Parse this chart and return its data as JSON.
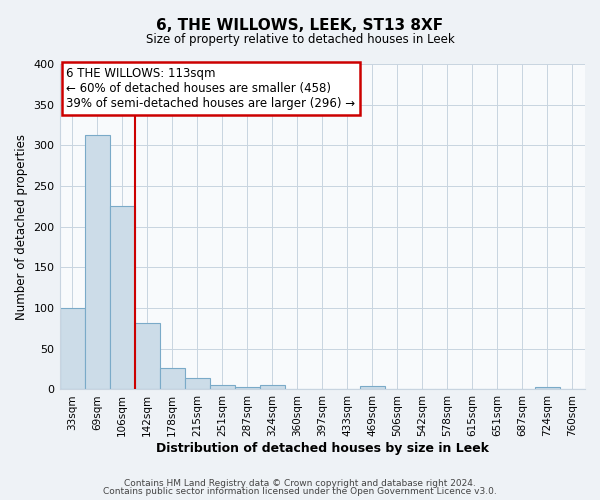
{
  "title": "6, THE WILLOWS, LEEK, ST13 8XF",
  "subtitle": "Size of property relative to detached houses in Leek",
  "xlabel": "Distribution of detached houses by size in Leek",
  "ylabel": "Number of detached properties",
  "bin_labels": [
    "33sqm",
    "69sqm",
    "106sqm",
    "142sqm",
    "178sqm",
    "215sqm",
    "251sqm",
    "287sqm",
    "324sqm",
    "360sqm",
    "397sqm",
    "433sqm",
    "469sqm",
    "506sqm",
    "542sqm",
    "578sqm",
    "615sqm",
    "651sqm",
    "687sqm",
    "724sqm",
    "760sqm"
  ],
  "bar_values": [
    100,
    313,
    225,
    82,
    26,
    14,
    5,
    3,
    5,
    0,
    0,
    0,
    4,
    0,
    0,
    0,
    0,
    0,
    0,
    3,
    0
  ],
  "bar_color": "#ccdce8",
  "bar_edge_color": "#7aaac8",
  "vline_index": 2,
  "vline_color": "#cc0000",
  "ylim": [
    0,
    400
  ],
  "yticks": [
    0,
    50,
    100,
    150,
    200,
    250,
    300,
    350,
    400
  ],
  "annotation_title": "6 THE WILLOWS: 113sqm",
  "annotation_line1": "← 60% of detached houses are smaller (458)",
  "annotation_line2": "39% of semi-detached houses are larger (296) →",
  "footer_line1": "Contains HM Land Registry data © Crown copyright and database right 2024.",
  "footer_line2": "Contains public sector information licensed under the Open Government Licence v3.0.",
  "background_color": "#eef2f6",
  "plot_bg_color": "#f8fafc",
  "grid_color": "#c8d4e0"
}
